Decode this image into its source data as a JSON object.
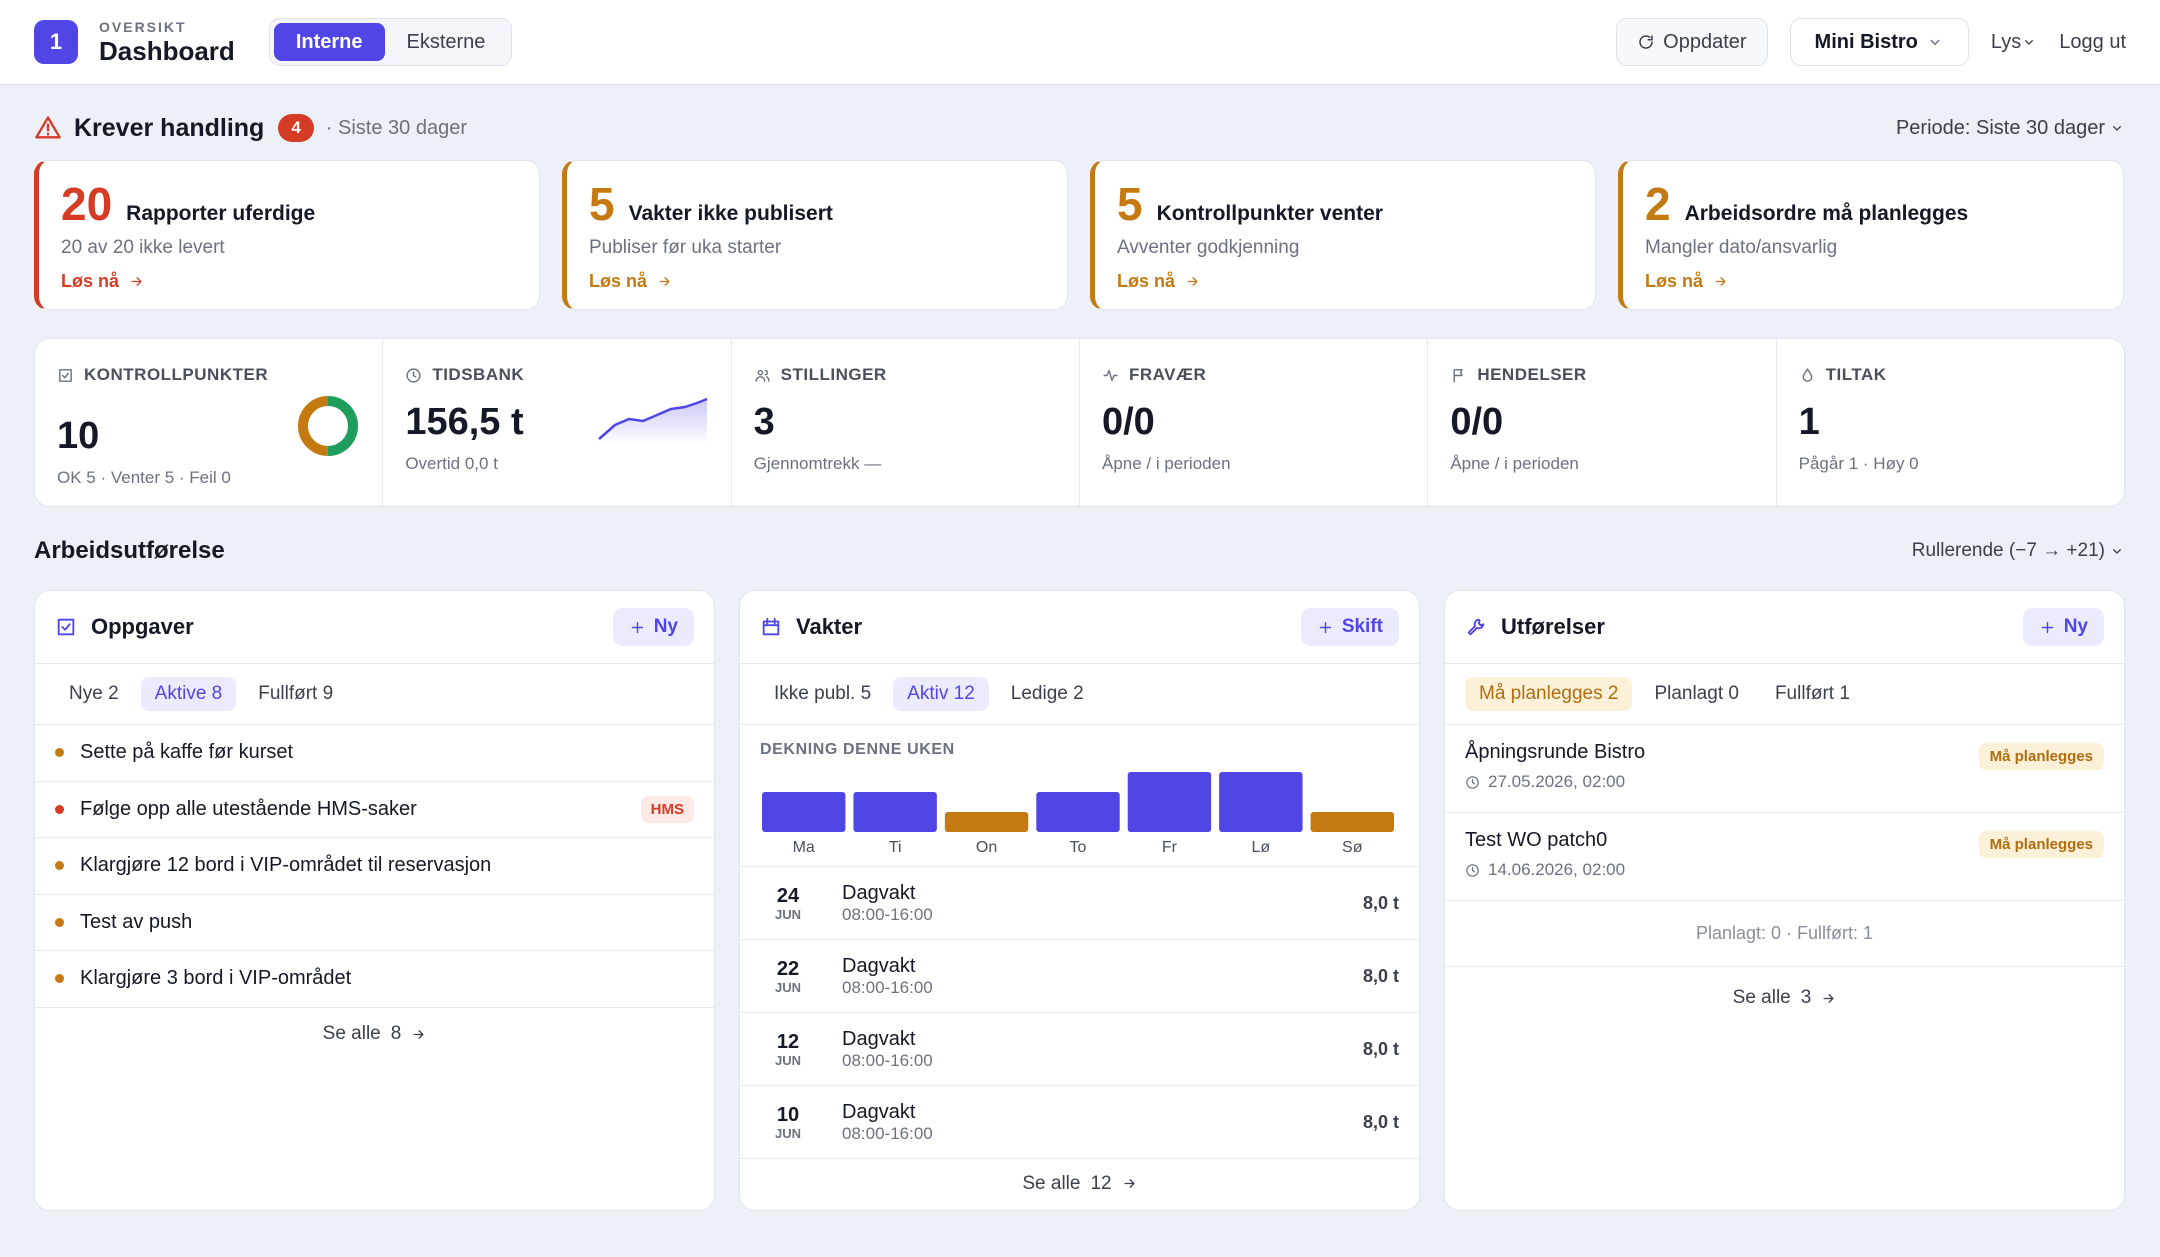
{
  "header": {
    "logo": "1",
    "eyebrow": "OVERSIKT",
    "title": "Dashboard",
    "tabs": [
      "Interne",
      "Eksterne"
    ],
    "active_tab": 0,
    "refresh": "Oppdater",
    "location": "Mini Bistro",
    "theme": "Lys",
    "logout": "Logg ut"
  },
  "actions": {
    "title": "Krever handling",
    "count": 4,
    "subtitle": "· Siste 30 dager",
    "period": "Periode: Siste 30 dager",
    "cards": [
      {
        "value": 20,
        "title": "Rapporter uferdige",
        "subtitle": "20 av 20 ikke levert",
        "link": "Løs nå",
        "color": "#d63b26"
      },
      {
        "value": 5,
        "title": "Vakter ikke publisert",
        "subtitle": "Publiser før uka starter",
        "link": "Løs nå",
        "color": "#c47a10"
      },
      {
        "value": 5,
        "title": "Kontrollpunkter venter",
        "subtitle": "Avventer godkjenning",
        "link": "Løs nå",
        "color": "#c47a10"
      },
      {
        "value": 2,
        "title": "Arbeidsordre må planlegges",
        "subtitle": "Mangler dato/ansvarlig",
        "link": "Løs nå",
        "color": "#c47a10"
      }
    ]
  },
  "kpis": [
    {
      "label": "KONTROLLPUNKTER",
      "value": 10,
      "note": "OK 5 · Venter 5 · Feil 0",
      "donut": {
        "values": [
          5,
          5,
          0
        ],
        "colors": [
          "#1f9d5c",
          "#c47a10",
          "#d63b26"
        ]
      }
    },
    {
      "label": "TIDSBANK",
      "value": "156,5 t",
      "note": "Overtid 0,0 t"
    },
    {
      "label": "STILLINGER",
      "value": 3,
      "note": "Gjennomtrekk —"
    },
    {
      "label": "FRAVÆR",
      "value": "0/0",
      "note": "Åpne / i perioden"
    },
    {
      "label": "HENDELSER",
      "value": "0/0",
      "note": "Åpne / i perioden"
    },
    {
      "label": "TILTAK",
      "value": 1,
      "note": "Pågår 1 · Høy 0"
    }
  ],
  "work": {
    "title": "Arbeidsutførelse",
    "range": "Rullerende (−7 → +21)",
    "tasks": {
      "title": "Oppgaver",
      "button": "Ny",
      "tabs": [
        "Nye 2",
        "Aktive 8",
        "Fullført 9"
      ],
      "active_tab": 1,
      "items": [
        {
          "title": "Sette på kaffe før kurset",
          "color": "#c47a10"
        },
        {
          "title": "Følge opp alle utestående HMS-saker",
          "color": "#d63b26",
          "tag": "HMS"
        },
        {
          "title": "Klargjøre 12 bord i VIP-området til reservasjon",
          "color": "#c47a10"
        },
        {
          "title": "Test av push",
          "color": "#c47a10"
        },
        {
          "title": "Klargjøre 3 bord i VIP-området",
          "color": "#c47a10"
        }
      ],
      "see_all": "Se alle",
      "see_all_count": 8
    },
    "shifts": {
      "title": "Vakter",
      "button": "Skift",
      "tabs": [
        "Ikke publ. 5",
        "Aktiv 12",
        "Ledige 2"
      ],
      "active_tab": 1,
      "coverage": {
        "label": "DEKNING DENNE UKEN",
        "days": [
          "Ma",
          "Ti",
          "On",
          "To",
          "Fr",
          "Lø",
          "Sø"
        ],
        "values": [
          2,
          2,
          1,
          2,
          3,
          3,
          1
        ],
        "colors": [
          "#4f46e5",
          "#4f46e5",
          "#c47a10",
          "#4f46e5",
          "#4f46e5",
          "#4f46e5",
          "#c47a10"
        ]
      },
      "items": [
        {
          "day": 24,
          "month": "JUN",
          "title": "Dagvakt",
          "time": "08:00-16:00",
          "hours": "8,0 t"
        },
        {
          "day": 22,
          "month": "JUN",
          "title": "Dagvakt",
          "time": "08:00-16:00",
          "hours": "8,0 t"
        },
        {
          "day": 12,
          "month": "JUN",
          "title": "Dagvakt",
          "time": "08:00-16:00",
          "hours": "8,0 t"
        },
        {
          "day": 10,
          "month": "JUN",
          "title": "Dagvakt",
          "time": "08:00-16:00",
          "hours": "8,0 t"
        }
      ],
      "see_all": "Se alle",
      "see_all_count": 12
    },
    "executions": {
      "title": "Utførelser",
      "button": "Ny",
      "tabs": [
        "Må planlegges 2",
        "Planlagt 0",
        "Fullført 1"
      ],
      "active_tab": 0,
      "items": [
        {
          "title": "Åpningsrunde Bistro",
          "date": "27.05.2026, 02:00",
          "status": "Må planlegges"
        },
        {
          "title": "Test WO patch0",
          "date": "14.06.2026, 02:00",
          "status": "Må planlegges"
        }
      ],
      "summary": "Planlagt: 0 · Fullført: 1",
      "see_all": "Se alle",
      "see_all_count": 3
    }
  }
}
